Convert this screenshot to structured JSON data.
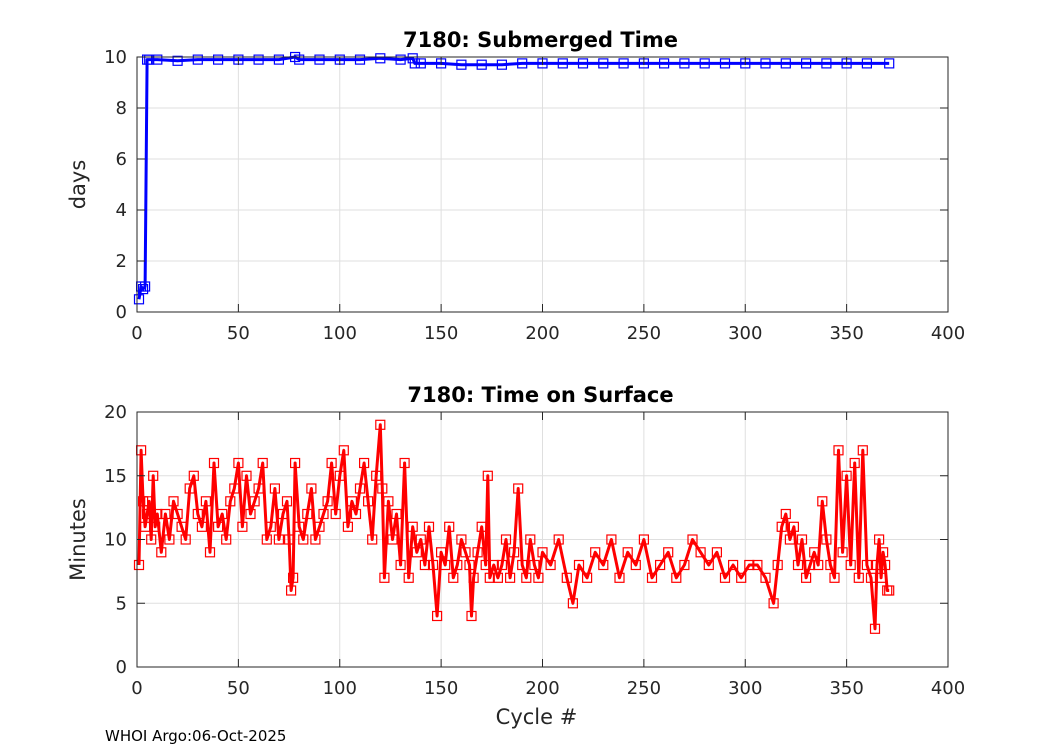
{
  "footer": "WHOI Argo:06-Oct-2025",
  "chart_data": [
    {
      "type": "line",
      "title": "7180: Submerged Time",
      "xlabel": "",
      "ylabel": "days",
      "xlim": [
        0,
        400
      ],
      "ylim": [
        0,
        10
      ],
      "xticks": [
        0,
        50,
        100,
        150,
        200,
        250,
        300,
        350,
        400
      ],
      "yticks": [
        0,
        2,
        4,
        6,
        8,
        10
      ],
      "grid": true,
      "color": "#0000ff",
      "marker": "square",
      "series": [
        {
          "x": [
            1,
            2,
            3,
            4,
            5,
            6,
            10,
            20,
            30,
            40,
            50,
            60,
            70,
            78,
            80,
            90,
            100,
            110,
            120,
            130,
            136,
            137,
            140,
            150,
            160,
            170,
            180,
            190,
            200,
            210,
            220,
            230,
            240,
            250,
            260,
            270,
            280,
            290,
            300,
            310,
            320,
            330,
            340,
            350,
            360,
            371
          ],
          "values": [
            0.5,
            1,
            0.9,
            1,
            9.9,
            9.9,
            9.9,
            9.85,
            9.9,
            9.9,
            9.9,
            9.9,
            9.9,
            10,
            9.9,
            9.9,
            9.9,
            9.9,
            9.95,
            9.9,
            9.95,
            9.75,
            9.75,
            9.75,
            9.7,
            9.7,
            9.7,
            9.75,
            9.75,
            9.75,
            9.75,
            9.75,
            9.75,
            9.75,
            9.75,
            9.75,
            9.75,
            9.75,
            9.75,
            9.75,
            9.75,
            9.75,
            9.75,
            9.75,
            9.75,
            9.75
          ]
        }
      ]
    },
    {
      "type": "line",
      "title": "7180: Time on Surface",
      "xlabel": "Cycle #",
      "ylabel": "Minutes",
      "xlim": [
        0,
        400
      ],
      "ylim": [
        0,
        20
      ],
      "xticks": [
        0,
        50,
        100,
        150,
        200,
        250,
        300,
        350,
        400
      ],
      "yticks": [
        0,
        5,
        10,
        15,
        20
      ],
      "grid": true,
      "color": "#ff0000",
      "marker": "square",
      "series": [
        {
          "x": [
            1,
            2,
            3,
            4,
            5,
            6,
            7,
            8,
            9,
            10,
            12,
            14,
            16,
            18,
            20,
            22,
            24,
            26,
            28,
            30,
            32,
            34,
            36,
            38,
            40,
            42,
            44,
            46,
            48,
            50,
            52,
            54,
            56,
            58,
            60,
            62,
            64,
            66,
            68,
            70,
            72,
            74,
            75,
            76,
            77,
            78,
            80,
            82,
            84,
            86,
            88,
            90,
            92,
            94,
            96,
            98,
            100,
            102,
            104,
            106,
            108,
            110,
            112,
            114,
            116,
            118,
            120,
            121,
            122,
            124,
            126,
            128,
            130,
            132,
            134,
            136,
            138,
            140,
            142,
            144,
            146,
            148,
            150,
            152,
            154,
            156,
            158,
            160,
            162,
            164,
            165,
            166,
            168,
            170,
            172,
            173,
            174,
            176,
            178,
            180,
            182,
            184,
            186,
            188,
            190,
            192,
            194,
            196,
            198,
            200,
            204,
            208,
            212,
            215,
            218,
            222,
            226,
            230,
            234,
            238,
            242,
            246,
            250,
            254,
            258,
            262,
            266,
            270,
            274,
            278,
            282,
            286,
            290,
            294,
            298,
            302,
            306,
            310,
            314,
            316,
            318,
            320,
            322,
            324,
            326,
            328,
            330,
            332,
            334,
            336,
            338,
            340,
            342,
            344,
            346,
            348,
            350,
            352,
            354,
            356,
            358,
            360,
            362,
            364,
            365,
            366,
            367,
            368,
            369,
            370,
            371
          ],
          "values": [
            8,
            17,
            13,
            11,
            12,
            13,
            10,
            15,
            11,
            12,
            9,
            12,
            10,
            13,
            12,
            11,
            10,
            14,
            15,
            12,
            11,
            13,
            9,
            16,
            11,
            12,
            10,
            13,
            14,
            16,
            11,
            15,
            12,
            13,
            14,
            16,
            10,
            11,
            14,
            10,
            12,
            13,
            10,
            6,
            7,
            16,
            11,
            10,
            12,
            14,
            10,
            11,
            12,
            13,
            16,
            12,
            15,
            17,
            11,
            13,
            12,
            14,
            16,
            13,
            10,
            15,
            19,
            14,
            7,
            13,
            10,
            12,
            8,
            16,
            7,
            11,
            9,
            10,
            8,
            11,
            8,
            4,
            9,
            8,
            11,
            7,
            8,
            10,
            9,
            8,
            4,
            7,
            9,
            11,
            8,
            15,
            7,
            8,
            7,
            8,
            10,
            7,
            9,
            14,
            8,
            7,
            10,
            8,
            7,
            9,
            8,
            10,
            7,
            5,
            8,
            7,
            9,
            8,
            10,
            7,
            9,
            8,
            10,
            7,
            8,
            9,
            7,
            8,
            10,
            9,
            8,
            9,
            7,
            8,
            7,
            8,
            8,
            7,
            5,
            8,
            11,
            12,
            10,
            11,
            8,
            10,
            7,
            8,
            9,
            8,
            13,
            10,
            8,
            7,
            17,
            9,
            15,
            8,
            16,
            7,
            17,
            8,
            7,
            3,
            8,
            10,
            7,
            9,
            8,
            6,
            6
          ]
        }
      ]
    }
  ]
}
